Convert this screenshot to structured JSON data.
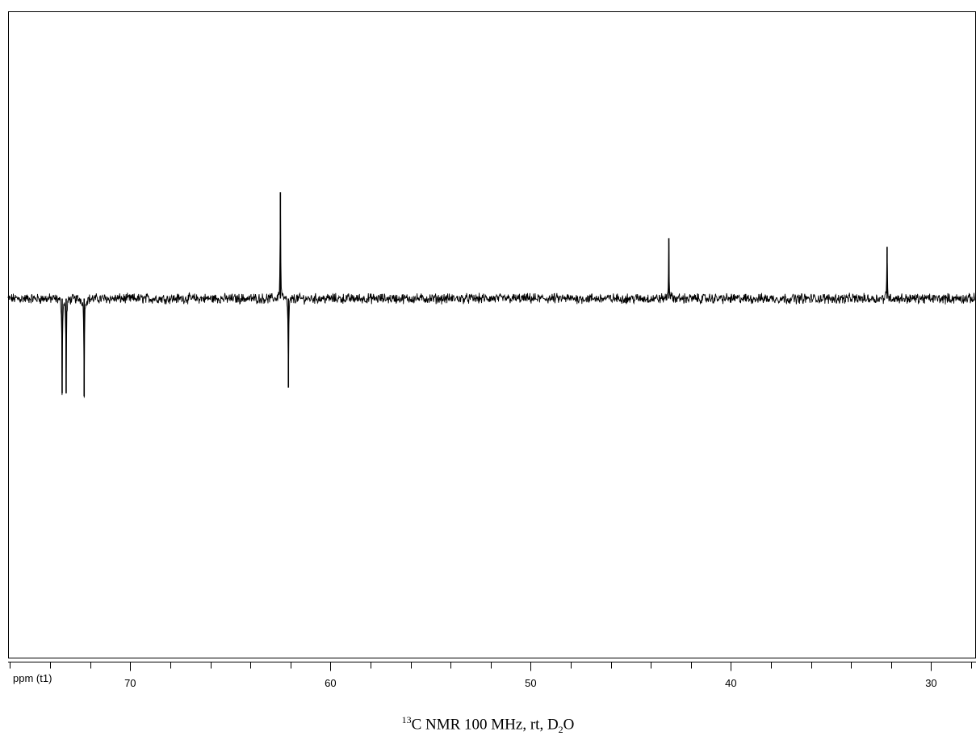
{
  "chart_data": {
    "type": "line",
    "title": "",
    "xlabel": "ppm (t1)",
    "ylabel": "",
    "x_reversed": true,
    "xlim": [
      76.1,
      27.8
    ],
    "ylim": [
      -1.25,
      1.0
    ],
    "grid": false,
    "legend": "none",
    "major_ticks": [
      70,
      60,
      50,
      40,
      30
    ],
    "tick_labels": [
      "70",
      "60",
      "50",
      "40",
      "30"
    ],
    "minor_tick_step": 2,
    "baseline": 0,
    "noise_amplitude": 0.014,
    "peaks": [
      {
        "ppm": 73.4,
        "intensity": -0.33
      },
      {
        "ppm": 73.2,
        "intensity": -0.33
      },
      {
        "ppm": 72.3,
        "intensity": -0.34
      },
      {
        "ppm": 62.5,
        "intensity": 0.37
      },
      {
        "ppm": 62.1,
        "intensity": -0.31
      },
      {
        "ppm": 43.1,
        "intensity": 0.21
      },
      {
        "ppm": 32.2,
        "intensity": 0.18
      }
    ],
    "line_color": "#000000"
  },
  "caption": {
    "iso": "13",
    "main": "C NMR 100 MHz, rt, D",
    "sub": "2",
    "tail": "O"
  }
}
